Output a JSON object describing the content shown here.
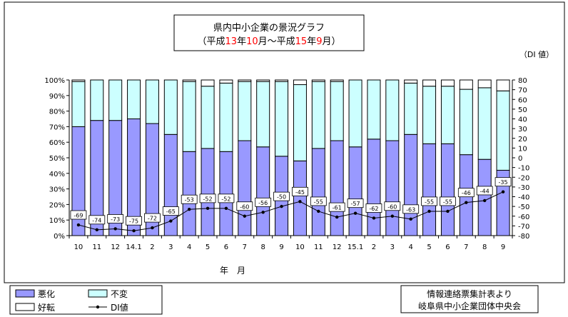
{
  "chart_data": {
    "type": "bar",
    "title_line1": "県内中小企業の景況グラフ",
    "title_line2": [
      {
        "text": "（平成",
        "color": "#000000"
      },
      {
        "text": "13",
        "color": "#ff0000"
      },
      {
        "text": "年",
        "color": "#000000"
      },
      {
        "text": "10",
        "color": "#ff0000"
      },
      {
        "text": "月～平成",
        "color": "#000000"
      },
      {
        "text": "15",
        "color": "#ff0000"
      },
      {
        "text": "年",
        "color": "#000000"
      },
      {
        "text": "9",
        "color": "#ff0000"
      },
      {
        "text": "月）",
        "color": "#000000"
      }
    ],
    "right_axis_title": "（DI 値）",
    "xlabel": "年　月",
    "categories": [
      "10",
      "11",
      "12",
      "14.1",
      "2",
      "3",
      "4",
      "5",
      "6",
      "7",
      "8",
      "9",
      "10",
      "11",
      "12",
      "15.1",
      "2",
      "3",
      "4",
      "5",
      "6",
      "7",
      "8",
      "9"
    ],
    "series": [
      {
        "name": "悪化",
        "color": "#9999ff",
        "values": [
          70,
          74,
          74,
          75,
          72,
          65,
          54,
          56,
          54,
          61,
          57,
          51,
          48,
          56,
          61,
          57,
          62,
          61,
          65,
          59,
          59,
          52,
          49,
          42
        ]
      },
      {
        "name": "不変",
        "color": "#ccffff",
        "values": [
          29,
          26,
          26,
          25,
          28,
          35,
          45,
          40,
          44,
          38,
          42,
          48,
          49,
          43,
          38,
          43,
          38,
          39,
          33,
          37,
          37,
          42,
          46,
          51
        ]
      },
      {
        "name": "好転",
        "color": "#ffffff",
        "values": [
          1,
          0,
          0,
          0,
          0,
          0,
          1,
          4,
          2,
          1,
          1,
          1,
          3,
          1,
          1,
          0,
          0,
          0,
          2,
          4,
          4,
          6,
          5,
          7
        ]
      }
    ],
    "di_series": {
      "name": "DI値",
      "values": [
        -69,
        -74,
        -73,
        -75,
        -72,
        -65,
        -53,
        -52,
        -52,
        -60,
        -56,
        -50,
        -45,
        -55,
        -61,
        -57,
        -62,
        -60,
        -63,
        -55,
        -55,
        -46,
        -44,
        -35
      ]
    },
    "left_axis": {
      "ticks": [
        "0%",
        "10%",
        "20%",
        "30%",
        "40%",
        "50%",
        "60%",
        "70%",
        "80%",
        "90%",
        "100%"
      ],
      "ylim": [
        0,
        100
      ]
    },
    "right_axis": {
      "ticks": [
        "-80",
        "-70",
        "-60",
        "-50",
        "-40",
        "-30",
        "-20",
        "-10",
        "0",
        "10",
        "20",
        "30",
        "40",
        "50",
        "60",
        "70",
        "80"
      ],
      "ylim": [
        -80,
        80
      ]
    },
    "legend": {
      "placement": "bottom-left"
    },
    "source": {
      "line1": "情報連絡票集計表より",
      "line2": "岐阜県中小企業団体中央会"
    }
  }
}
